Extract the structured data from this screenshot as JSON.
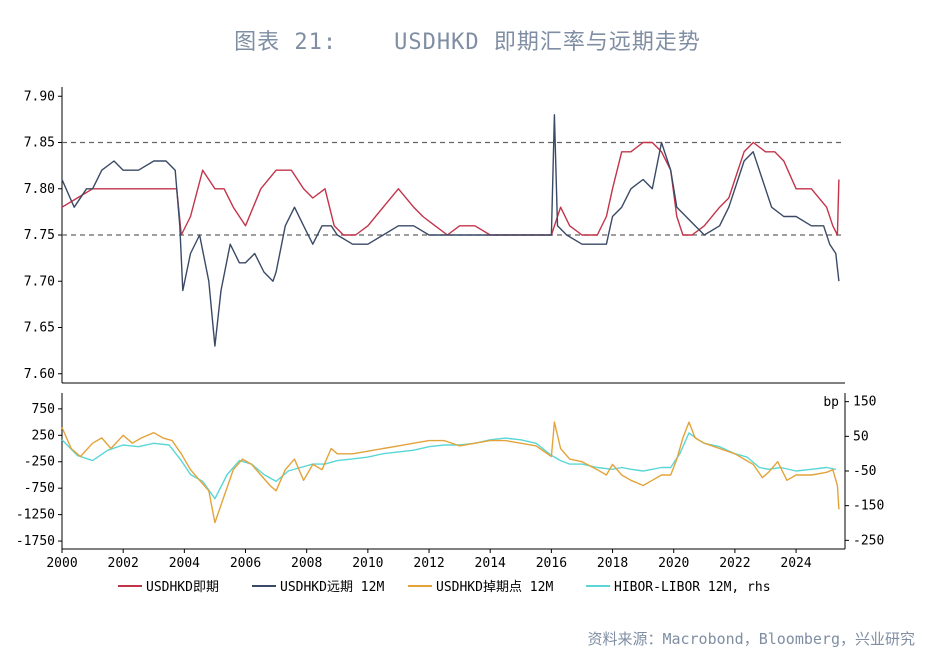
{
  "title": "图表 21:    USDHKD 即期汇率与远期走势",
  "source": "资料来源：Macrobond，Bloomberg，兴业研究",
  "colors": {
    "spot": "#c3334a",
    "fwd": "#3a4a66",
    "pts": "#e3a33a",
    "hibor": "#5ad6d6",
    "ref": "#666666"
  },
  "chart_data": [
    {
      "type": "line",
      "panel": "top",
      "xlim": [
        2000,
        2025.6
      ],
      "ylim": [
        7.59,
        7.91
      ],
      "yticks": [
        "7.60",
        "7.65",
        "7.70",
        "7.75",
        "7.80",
        "7.85",
        "7.90"
      ],
      "reference_lines": [
        7.75,
        7.85
      ],
      "series": [
        {
          "name": "USDHKD即期",
          "color_key": "spot",
          "x": [
            2000.0,
            2000.5,
            2001.0,
            2001.5,
            2002.0,
            2002.5,
            2003.0,
            2003.5,
            2003.75,
            2003.9,
            2004.2,
            2004.6,
            2005.0,
            2005.3,
            2005.6,
            2006.0,
            2006.5,
            2007.0,
            2007.5,
            2007.9,
            2008.2,
            2008.6,
            2008.9,
            2009.2,
            2009.6,
            2010.0,
            2010.5,
            2011.0,
            2011.5,
            2011.8,
            2012.2,
            2012.6,
            2013.0,
            2013.5,
            2014.0,
            2014.5,
            2015.0,
            2015.5,
            2016.0,
            2016.3,
            2016.6,
            2017.0,
            2017.5,
            2017.8,
            2018.0,
            2018.3,
            2018.6,
            2019.0,
            2019.3,
            2019.6,
            2019.9,
            2020.1,
            2020.3,
            2020.6,
            2021.0,
            2021.5,
            2021.8,
            2022.0,
            2022.3,
            2022.6,
            2023.0,
            2023.3,
            2023.6,
            2024.0,
            2024.5,
            2025.0,
            2025.2,
            2025.35,
            2025.4
          ],
          "y": [
            7.78,
            7.79,
            7.8,
            7.8,
            7.8,
            7.8,
            7.8,
            7.8,
            7.8,
            7.75,
            7.77,
            7.82,
            7.8,
            7.8,
            7.78,
            7.76,
            7.8,
            7.82,
            7.82,
            7.8,
            7.79,
            7.8,
            7.76,
            7.75,
            7.75,
            7.76,
            7.78,
            7.8,
            7.78,
            7.77,
            7.76,
            7.75,
            7.76,
            7.76,
            7.75,
            7.75,
            7.75,
            7.75,
            7.75,
            7.78,
            7.76,
            7.75,
            7.75,
            7.77,
            7.8,
            7.84,
            7.84,
            7.85,
            7.85,
            7.84,
            7.82,
            7.77,
            7.75,
            7.75,
            7.76,
            7.78,
            7.79,
            7.81,
            7.84,
            7.85,
            7.84,
            7.84,
            7.83,
            7.8,
            7.8,
            7.78,
            7.76,
            7.75,
            7.81
          ]
        },
        {
          "name": "USDHKD远期 12M",
          "color_key": "fwd",
          "x": [
            2000.0,
            2000.4,
            2000.8,
            2001.0,
            2001.3,
            2001.7,
            2002.0,
            2002.5,
            2003.0,
            2003.4,
            2003.7,
            2003.85,
            2003.95,
            2004.2,
            2004.5,
            2004.8,
            2005.0,
            2005.2,
            2005.5,
            2005.8,
            2006.0,
            2006.3,
            2006.6,
            2006.9,
            2007.0,
            2007.3,
            2007.6,
            2007.9,
            2008.2,
            2008.5,
            2008.8,
            2009.0,
            2009.5,
            2010.0,
            2010.5,
            2011.0,
            2011.5,
            2012.0,
            2012.5,
            2013.0,
            2013.5,
            2014.0,
            2014.5,
            2015.0,
            2015.5,
            2016.0,
            2016.1,
            2016.2,
            2016.5,
            2017.0,
            2017.5,
            2017.8,
            2018.0,
            2018.3,
            2018.6,
            2019.0,
            2019.3,
            2019.6,
            2019.9,
            2020.1,
            2020.4,
            2020.7,
            2021.0,
            2021.5,
            2021.8,
            2022.0,
            2022.3,
            2022.6,
            2022.9,
            2023.2,
            2023.6,
            2024.0,
            2024.5,
            2024.9,
            2025.1,
            2025.3,
            2025.4
          ],
          "y": [
            7.81,
            7.78,
            7.8,
            7.8,
            7.82,
            7.83,
            7.82,
            7.82,
            7.83,
            7.83,
            7.82,
            7.76,
            7.69,
            7.73,
            7.75,
            7.7,
            7.63,
            7.69,
            7.74,
            7.72,
            7.72,
            7.73,
            7.71,
            7.7,
            7.71,
            7.76,
            7.78,
            7.76,
            7.74,
            7.76,
            7.76,
            7.75,
            7.74,
            7.74,
            7.75,
            7.76,
            7.76,
            7.75,
            7.75,
            7.75,
            7.75,
            7.75,
            7.75,
            7.75,
            7.75,
            7.75,
            7.88,
            7.76,
            7.75,
            7.74,
            7.74,
            7.74,
            7.77,
            7.78,
            7.8,
            7.81,
            7.8,
            7.85,
            7.82,
            7.78,
            7.77,
            7.76,
            7.75,
            7.76,
            7.78,
            7.8,
            7.83,
            7.84,
            7.81,
            7.78,
            7.77,
            7.77,
            7.76,
            7.76,
            7.74,
            7.73,
            7.7
          ]
        }
      ]
    },
    {
      "type": "line",
      "panel": "bottom",
      "xlim": [
        2000,
        2025.6
      ],
      "xticks": [
        "2000",
        "2002",
        "2004",
        "2006",
        "2008",
        "2010",
        "2012",
        "2014",
        "2016",
        "2018",
        "2020",
        "2022",
        "2024"
      ],
      "ylim_left": [
        -1900,
        1050
      ],
      "yticks_left": [
        "750",
        "250",
        "-250",
        "-750",
        "-1250",
        "-1750"
      ],
      "ylim_right": [
        -275,
        175
      ],
      "yticks_right": [
        "150",
        "50",
        "-50",
        "-150",
        "-250"
      ],
      "right_unit": "bp",
      "series": [
        {
          "name": "USDHKD掉期点 12M",
          "color_key": "pts",
          "axis": "left",
          "x": [
            2000.0,
            2000.3,
            2000.6,
            2001.0,
            2001.3,
            2001.6,
            2002.0,
            2002.3,
            2002.6,
            2003.0,
            2003.3,
            2003.6,
            2003.9,
            2004.2,
            2004.5,
            2004.8,
            2005.0,
            2005.3,
            2005.6,
            2005.9,
            2006.2,
            2006.5,
            2006.8,
            2007.0,
            2007.3,
            2007.6,
            2007.9,
            2008.2,
            2008.5,
            2008.8,
            2009.0,
            2009.5,
            2010.0,
            2010.5,
            2011.0,
            2011.5,
            2012.0,
            2012.5,
            2013.0,
            2013.5,
            2014.0,
            2014.5,
            2015.0,
            2015.5,
            2016.0,
            2016.1,
            2016.3,
            2016.6,
            2017.0,
            2017.5,
            2017.8,
            2018.0,
            2018.3,
            2018.6,
            2019.0,
            2019.3,
            2019.6,
            2019.9,
            2020.1,
            2020.3,
            2020.5,
            2020.7,
            2021.0,
            2021.5,
            2022.0,
            2022.3,
            2022.6,
            2022.9,
            2023.1,
            2023.4,
            2023.7,
            2024.0,
            2024.5,
            2025.0,
            2025.2,
            2025.35,
            2025.4
          ],
          "y": [
            400,
            0,
            -150,
            100,
            200,
            0,
            250,
            100,
            200,
            300,
            200,
            150,
            -100,
            -400,
            -600,
            -800,
            -1400,
            -900,
            -400,
            -200,
            -300,
            -500,
            -700,
            -800,
            -400,
            -200,
            -600,
            -300,
            -400,
            0,
            -100,
            -100,
            -50,
            0,
            50,
            100,
            150,
            150,
            50,
            100,
            150,
            150,
            100,
            50,
            -150,
            500,
            0,
            -200,
            -250,
            -400,
            -500,
            -300,
            -500,
            -600,
            -700,
            -600,
            -500,
            -500,
            -200,
            200,
            500,
            200,
            100,
            0,
            -100,
            -200,
            -300,
            -550,
            -450,
            -250,
            -600,
            -500,
            -500,
            -450,
            -400,
            -700,
            -1150
          ]
        },
        {
          "name": "HIBOR-LIBOR 12M, rhs",
          "color_key": "hibor",
          "axis": "right",
          "x": [
            2000.0,
            2000.5,
            2001.0,
            2001.5,
            2002.0,
            2002.5,
            2003.0,
            2003.5,
            2003.9,
            2004.2,
            2004.6,
            2005.0,
            2005.4,
            2005.8,
            2006.2,
            2006.6,
            2007.0,
            2007.4,
            2007.8,
            2008.2,
            2008.6,
            2009.0,
            2009.5,
            2010.0,
            2010.5,
            2011.0,
            2011.5,
            2012.0,
            2012.5,
            2013.0,
            2013.5,
            2014.0,
            2014.5,
            2015.0,
            2015.5,
            2016.0,
            2016.3,
            2016.6,
            2017.0,
            2017.5,
            2018.0,
            2018.3,
            2018.6,
            2019.0,
            2019.3,
            2019.6,
            2019.9,
            2020.2,
            2020.5,
            2020.8,
            2021.0,
            2021.5,
            2022.0,
            2022.4,
            2022.8,
            2023.1,
            2023.5,
            2024.0,
            2024.5,
            2025.0,
            2025.3
          ],
          "y": [
            40,
            -5,
            -20,
            10,
            25,
            20,
            30,
            25,
            -20,
            -60,
            -80,
            -130,
            -60,
            -20,
            -30,
            -60,
            -80,
            -50,
            -40,
            -30,
            -30,
            -20,
            -15,
            -10,
            0,
            5,
            10,
            20,
            25,
            25,
            30,
            40,
            45,
            40,
            30,
            -5,
            -20,
            -30,
            -30,
            -40,
            -45,
            -40,
            -45,
            -50,
            -45,
            -40,
            -40,
            0,
            60,
            40,
            30,
            20,
            0,
            -10,
            -40,
            -45,
            -40,
            -50,
            -45,
            -40,
            -45
          ]
        }
      ]
    }
  ],
  "legend": [
    {
      "label": "USDHKD即期",
      "color_key": "spot"
    },
    {
      "label": "USDHKD远期 12M",
      "color_key": "fwd"
    },
    {
      "label": "USDHKD掉期点 12M",
      "color_key": "pts"
    },
    {
      "label": "HIBOR-LIBOR 12M, rhs",
      "color_key": "hibor"
    }
  ]
}
